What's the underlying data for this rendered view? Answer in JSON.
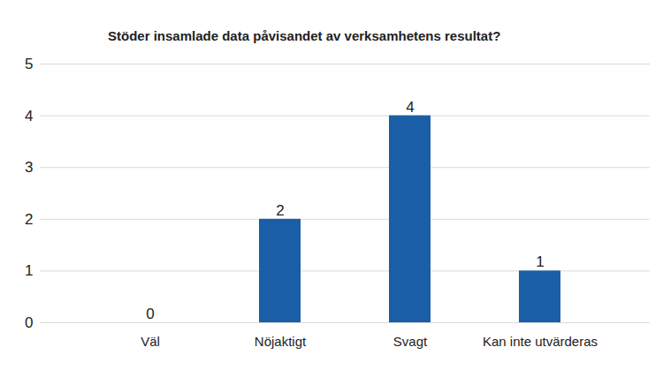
{
  "chart_data": {
    "type": "bar",
    "title": "Stöder insamlade data påvisandet av verksamhetens resultat?",
    "categories": [
      "Väl",
      "Nöjaktigt",
      "Svagt",
      "Kan inte utvärderas"
    ],
    "values": [
      0,
      2,
      4,
      1
    ],
    "color": "#1a5ea8",
    "ylim": [
      0,
      5
    ],
    "yticks": [
      0,
      1,
      2,
      3,
      4,
      5
    ],
    "grid": true,
    "data_labels": true
  }
}
